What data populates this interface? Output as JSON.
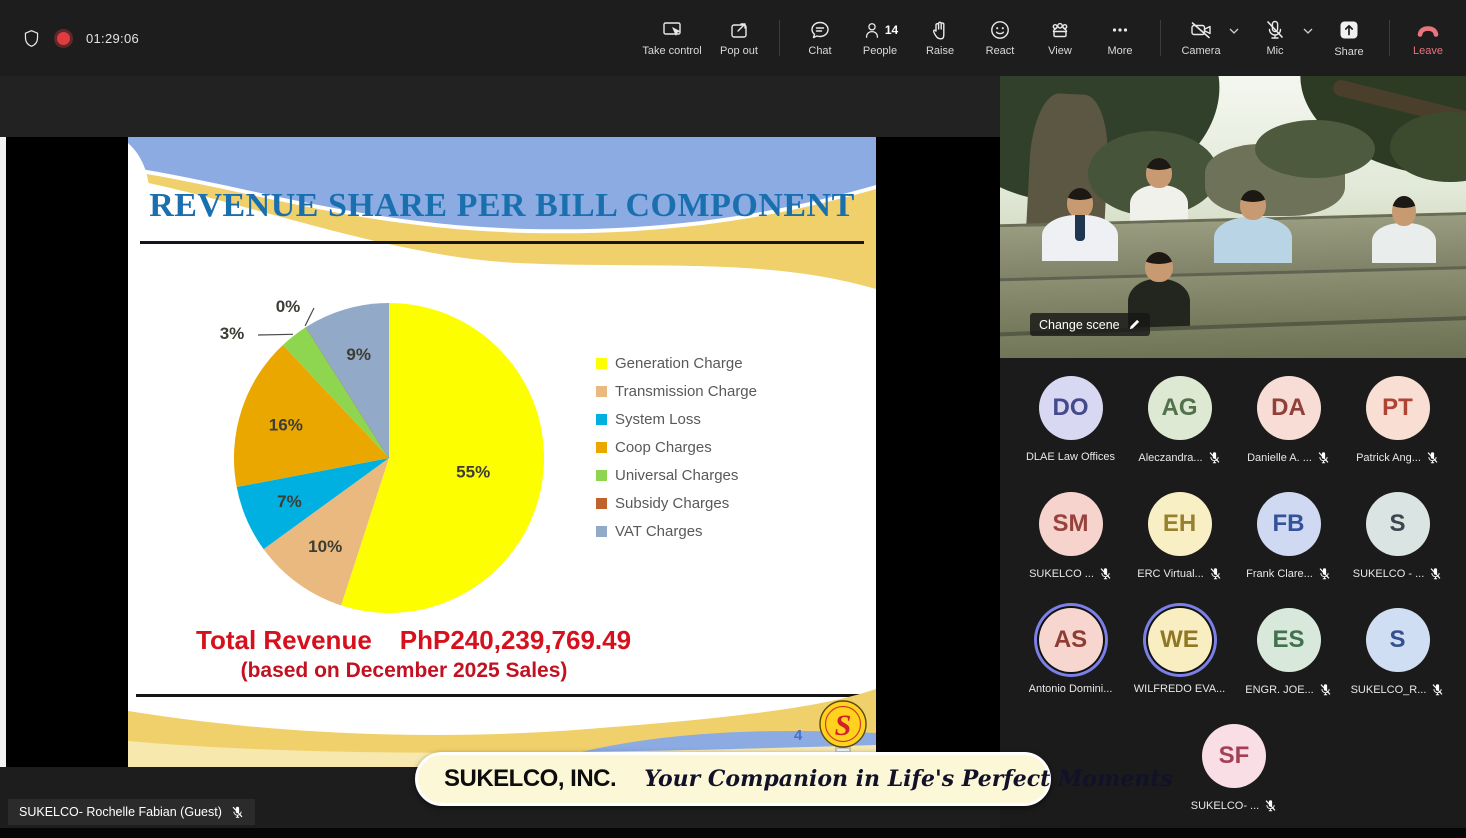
{
  "toolbar": {
    "timer": "01:29:06",
    "take_control": "Take control",
    "pop_out": "Pop out",
    "chat": "Chat",
    "people": "People",
    "people_count": "14",
    "raise": "Raise",
    "react": "React",
    "view": "View",
    "more": "More",
    "camera": "Camera",
    "mic": "Mic",
    "share": "Share",
    "leave": "Leave",
    "record_color": "#dd3c41",
    "leave_color": "#e8747e"
  },
  "slide": {
    "title": "REVENUE SHARE PER BILL COMPONENT",
    "title_color": "#1a6fae",
    "total_label": "Total Revenue",
    "total_value": "PhP240,239,769.49",
    "basis_note": "(based on December 2025 Sales)",
    "revenue_color": "#d6101c",
    "page_number": "4"
  },
  "chart_data": {
    "type": "pie",
    "title": "REVENUE SHARE PER BILL COMPONENT",
    "unit": "percent of total revenue",
    "start_angle": "top",
    "direction": "clockwise",
    "legend_position": "right",
    "slices": [
      {
        "label": "Generation Charge",
        "value": 55,
        "color": "#fdfe00"
      },
      {
        "label": "Transmission Charge",
        "value": 10,
        "color": "#e9b97f"
      },
      {
        "label": "System Loss",
        "value": 7,
        "color": "#00b0e0"
      },
      {
        "label": "Coop Charges",
        "value": 16,
        "color": "#eaa700"
      },
      {
        "label": "Universal Charges",
        "value": 3,
        "color": "#8ed650"
      },
      {
        "label": "Subsidy Charges",
        "value": 0,
        "color": "#c0622c"
      },
      {
        "label": "VAT Charges",
        "value": 9,
        "color": "#93a9c8"
      }
    ],
    "total_revenue": "PhP240,239,769.49",
    "basis": "December 2025 Sales"
  },
  "banner": {
    "company": "SUKELCO, INC.",
    "tagline": "Your Companion in Life's Perfect Moments"
  },
  "stage": {
    "change_scene": "Change scene"
  },
  "participants": [
    {
      "initials": "DO",
      "name": "DLAE Law Offices",
      "bg": "#d8d8f2",
      "fg": "#444a8c",
      "muted": false,
      "speaking": false
    },
    {
      "initials": "AG",
      "name": "Aleczandra...",
      "bg": "#dde9d3",
      "fg": "#53714a",
      "muted": true,
      "speaking": false
    },
    {
      "initials": "DA",
      "name": "Danielle A. ...",
      "bg": "#f7ddd6",
      "fg": "#8f4038",
      "muted": true,
      "speaking": false
    },
    {
      "initials": "PT",
      "name": "Patrick Ang...",
      "bg": "#f9dfd3",
      "fg": "#b04434",
      "muted": true,
      "speaking": false
    },
    {
      "initials": "SM",
      "name": "SUKELCO ...",
      "bg": "#f6d3cd",
      "fg": "#97423c",
      "muted": true,
      "speaking": false
    },
    {
      "initials": "EH",
      "name": "ERC Virtual...",
      "bg": "#f9efc4",
      "fg": "#97802e",
      "muted": true,
      "speaking": false
    },
    {
      "initials": "FB",
      "name": "Frank Clare...",
      "bg": "#cfd9f1",
      "fg": "#35519c",
      "muted": true,
      "speaking": false
    },
    {
      "initials": "S",
      "name": "SUKELCO - ...",
      "bg": "#dae4e3",
      "fg": "#3c4650",
      "muted": true,
      "speaking": false
    },
    {
      "initials": "AS",
      "name": "Antonio Domini...",
      "bg": "#f6d6ce",
      "fg": "#8f3c34",
      "muted": false,
      "speaking": true
    },
    {
      "initials": "WE",
      "name": "WILFREDO EVA...",
      "bg": "#f9eec2",
      "fg": "#8f7824",
      "muted": false,
      "speaking": true
    },
    {
      "initials": "ES",
      "name": "ENGR. JOE...",
      "bg": "#d8e9dc",
      "fg": "#41724f",
      "muted": true,
      "speaking": false
    },
    {
      "initials": "S",
      "name": "SUKELCO_R...",
      "bg": "#d0def4",
      "fg": "#35508e",
      "muted": true,
      "speaking": false
    },
    {
      "initials": "SF",
      "name": "SUKELCO- ...",
      "bg": "#f9dee6",
      "fg": "#a44054",
      "muted": true,
      "speaking": false
    }
  ],
  "presenter_label": {
    "text": "SUKELCO- Rochelle Fabian (Guest)",
    "muted": true
  }
}
